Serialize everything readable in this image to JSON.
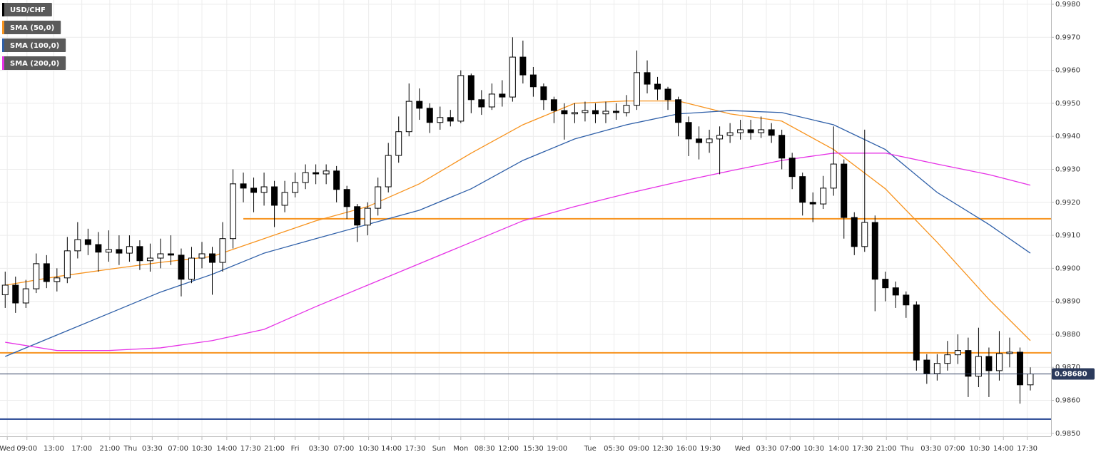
{
  "chart_data": {
    "type": "candlestick",
    "grid": true,
    "candles": {
      "name": "USD/CHF",
      "color": "#000000",
      "open": [
        0.9892,
        0.98949,
        0.98895,
        0.98938,
        0.99014,
        0.9896,
        0.98971,
        0.99053,
        0.99087,
        0.99072,
        0.99049,
        0.99057,
        0.99046,
        0.99066,
        0.99023,
        0.99031,
        0.99044,
        0.9904,
        0.98967,
        0.99031,
        0.99044,
        0.99018,
        0.9909,
        0.99256,
        0.99243,
        0.9923,
        0.99247,
        0.99191,
        0.9923,
        0.9926,
        0.9929,
        0.99286,
        0.99295,
        0.99239,
        0.99187,
        0.99131,
        0.99182,
        0.99247,
        0.99342,
        0.99414,
        0.99506,
        0.99485,
        0.99442,
        0.99457,
        0.99446,
        0.99584,
        0.99511,
        0.99489,
        0.99528,
        0.99519,
        0.9964,
        0.99586,
        0.9955,
        0.99511,
        0.99478,
        0.99468,
        0.99472,
        0.99478,
        0.99468,
        0.99476,
        0.99472,
        0.99494,
        0.99593,
        0.99558,
        0.99543,
        0.99511,
        0.99442,
        0.99392,
        0.99381,
        0.99392,
        0.99403,
        0.99411,
        0.9942,
        0.99411,
        0.9942,
        0.99403,
        0.99334,
        0.99278,
        0.992,
        0.99195,
        0.99243,
        0.99316,
        0.99154,
        0.99066,
        0.99139,
        0.98967,
        0.98941,
        0.98919,
        0.98889,
        0.98722,
        0.98681,
        0.98712,
        0.98738,
        0.98751,
        0.98673,
        0.98733,
        0.9869,
        0.98742,
        0.98746,
        0.98647
      ],
      "high": [
        0.9899,
        0.98975,
        0.98965,
        0.99045,
        0.9904,
        0.99,
        0.99095,
        0.9914,
        0.9912,
        0.9911,
        0.99115,
        0.991,
        0.991,
        0.99085,
        0.99075,
        0.9909,
        0.991,
        0.9906,
        0.99065,
        0.9908,
        0.99065,
        0.9914,
        0.993,
        0.9929,
        0.99275,
        0.9929,
        0.99265,
        0.99265,
        0.9929,
        0.99315,
        0.99315,
        0.99315,
        0.9931,
        0.9925,
        0.99195,
        0.992,
        0.99275,
        0.9938,
        0.9946,
        0.9956,
        0.99545,
        0.995,
        0.9949,
        0.9948,
        0.996,
        0.9959,
        0.9954,
        0.9956,
        0.9957,
        0.997,
        0.9969,
        0.9961,
        0.9956,
        0.9952,
        0.995,
        0.995,
        0.99505,
        0.995,
        0.99505,
        0.995,
        0.99525,
        0.9966,
        0.9963,
        0.9958,
        0.9955,
        0.9952,
        0.9946,
        0.9943,
        0.9942,
        0.9943,
        0.9944,
        0.9945,
        0.9945,
        0.9946,
        0.9944,
        0.9942,
        0.9935,
        0.9929,
        0.9923,
        0.9928,
        0.9943,
        0.9933,
        0.9917,
        0.9942,
        0.9916,
        0.9899,
        0.9896,
        0.9893,
        0.989,
        0.9874,
        0.9874,
        0.9878,
        0.988,
        0.9879,
        0.9882,
        0.9876,
        0.9881,
        0.9879,
        0.9876,
        0.987
      ],
      "low": [
        0.9888,
        0.98865,
        0.9888,
        0.98925,
        0.9894,
        0.9893,
        0.98955,
        0.9903,
        0.9904,
        0.9899,
        0.9902,
        0.9901,
        0.9902,
        0.98995,
        0.9899,
        0.99,
        0.9901,
        0.98915,
        0.98955,
        0.99,
        0.9892,
        0.9899,
        0.9906,
        0.992,
        0.9917,
        0.9919,
        0.99125,
        0.9917,
        0.99215,
        0.9924,
        0.99255,
        0.99255,
        0.992,
        0.9915,
        0.9908,
        0.991,
        0.9916,
        0.9923,
        0.9932,
        0.994,
        0.9945,
        0.9941,
        0.9942,
        0.9943,
        0.9944,
        0.9947,
        0.99465,
        0.9948,
        0.9949,
        0.99505,
        0.9956,
        0.9952,
        0.9948,
        0.9944,
        0.9939,
        0.9944,
        0.99445,
        0.9944,
        0.9944,
        0.9945,
        0.9946,
        0.9948,
        0.9953,
        0.9951,
        0.9948,
        0.994,
        0.9934,
        0.9933,
        0.9935,
        0.99285,
        0.9938,
        0.9939,
        0.9939,
        0.99395,
        0.9938,
        0.993,
        0.9924,
        0.9916,
        0.9914,
        0.9918,
        0.9922,
        0.9909,
        0.9904,
        0.9905,
        0.9887,
        0.989,
        0.9888,
        0.9885,
        0.9869,
        0.9865,
        0.9866,
        0.9869,
        0.9871,
        0.9861,
        0.9864,
        0.9861,
        0.9866,
        0.987,
        0.9859,
        0.9863
      ],
      "close": [
        0.98949,
        0.98895,
        0.98938,
        0.99014,
        0.9896,
        0.98971,
        0.99053,
        0.99087,
        0.99072,
        0.99049,
        0.99057,
        0.99046,
        0.99066,
        0.99023,
        0.99031,
        0.99044,
        0.9904,
        0.98967,
        0.99031,
        0.99044,
        0.99018,
        0.9909,
        0.99256,
        0.99243,
        0.9923,
        0.99247,
        0.99191,
        0.9923,
        0.9926,
        0.9929,
        0.99286,
        0.99295,
        0.99239,
        0.99187,
        0.99131,
        0.99182,
        0.99247,
        0.99342,
        0.99414,
        0.99506,
        0.99485,
        0.99442,
        0.99457,
        0.99446,
        0.99584,
        0.99511,
        0.99489,
        0.99528,
        0.99519,
        0.9964,
        0.99586,
        0.9955,
        0.99511,
        0.99478,
        0.99468,
        0.99472,
        0.99478,
        0.99468,
        0.99476,
        0.99472,
        0.99494,
        0.99593,
        0.99558,
        0.99543,
        0.99511,
        0.99442,
        0.99392,
        0.99381,
        0.99392,
        0.99403,
        0.99411,
        0.9942,
        0.99411,
        0.9942,
        0.99403,
        0.99334,
        0.99278,
        0.992,
        0.99195,
        0.99243,
        0.99316,
        0.99154,
        0.99066,
        0.99139,
        0.98967,
        0.98941,
        0.98919,
        0.98889,
        0.98722,
        0.98681,
        0.98712,
        0.98738,
        0.98751,
        0.98673,
        0.98733,
        0.9869,
        0.98742,
        0.98746,
        0.98647,
        0.9868
      ]
    },
    "series": [
      {
        "name": "SMA (50,0)",
        "color": "#f7931e",
        "x": [
          0,
          5,
          10,
          15,
          20,
          25,
          30,
          35,
          40,
          45,
          50,
          55,
          60,
          65,
          70,
          75,
          80,
          85,
          90,
          95,
          99
        ],
        "values": [
          0.98949,
          0.98975,
          0.98997,
          0.99018,
          0.99036,
          0.9909,
          0.99144,
          0.99187,
          0.99256,
          0.99349,
          0.99435,
          0.995,
          0.99507,
          0.99507,
          0.99468,
          0.99446,
          0.9936,
          0.99241,
          0.99079,
          0.98906,
          0.98781
        ]
      },
      {
        "name": "SMA (100,0)",
        "color": "#2e5fa8",
        "x": [
          0,
          5,
          10,
          15,
          20,
          25,
          30,
          35,
          40,
          45,
          50,
          55,
          60,
          65,
          70,
          75,
          80,
          85,
          90,
          95,
          99
        ],
        "values": [
          0.98733,
          0.98798,
          0.98863,
          0.98928,
          0.98982,
          0.99046,
          0.9909,
          0.99133,
          0.99176,
          0.99241,
          0.99327,
          0.99392,
          0.99435,
          0.99468,
          0.99478,
          0.99472,
          0.99435,
          0.9936,
          0.9923,
          0.99133,
          0.99046
        ]
      },
      {
        "name": "SMA (200,0)",
        "color": "#e632e6",
        "x": [
          0,
          5,
          10,
          15,
          20,
          25,
          30,
          35,
          40,
          45,
          50,
          55,
          60,
          65,
          70,
          75,
          80,
          85,
          90,
          95,
          99
        ],
        "values": [
          0.98776,
          0.98751,
          0.98751,
          0.98759,
          0.98781,
          0.98815,
          0.98884,
          0.98949,
          0.99014,
          0.99079,
          0.99144,
          0.99187,
          0.99226,
          0.99262,
          0.99295,
          0.99327,
          0.99349,
          0.99349,
          0.99316,
          0.99284,
          0.99252
        ]
      }
    ],
    "hlines": [
      {
        "value": 0.9915,
        "color": "#f7931e",
        "from": 23
      },
      {
        "value": 0.98744,
        "color": "#f7931e"
      },
      {
        "value": 0.98543,
        "color": "#1f3f8f"
      }
    ],
    "last_price": {
      "value": 0.9868,
      "label": "0.98680",
      "color": "#2b3a5c"
    },
    "xlim": [
      -0.5,
      101
    ],
    "ylim": [
      0.98491,
      0.99813
    ],
    "yticks": [
      {
        "value": 0.985,
        "label": "0.9850"
      },
      {
        "value": 0.986,
        "label": "0.9860"
      },
      {
        "value": 0.987,
        "label": "0.9870"
      },
      {
        "value": 0.988,
        "label": "0.9880"
      },
      {
        "value": 0.989,
        "label": "0.9890"
      },
      {
        "value": 0.99,
        "label": "0.9900"
      },
      {
        "value": 0.991,
        "label": "0.9910"
      },
      {
        "value": 0.992,
        "label": "0.9920"
      },
      {
        "value": 0.993,
        "label": "0.9930"
      },
      {
        "value": 0.994,
        "label": "0.9940"
      },
      {
        "value": 0.995,
        "label": "0.9950"
      },
      {
        "value": 0.996,
        "label": "0.9960"
      },
      {
        "value": 0.997,
        "label": "0.9970"
      },
      {
        "value": 0.998,
        "label": "0.9980"
      }
    ],
    "xticks": [
      {
        "value": 0.2,
        "label": "Wed"
      },
      {
        "value": 2.1,
        "label": "09:00"
      },
      {
        "value": 4.7,
        "label": "13:00"
      },
      {
        "value": 7.4,
        "label": "17:00"
      },
      {
        "value": 10.1,
        "label": "21:00"
      },
      {
        "value": 12.1,
        "label": "Thu"
      },
      {
        "value": 14.2,
        "label": "03:30"
      },
      {
        "value": 16.7,
        "label": "07:00"
      },
      {
        "value": 19.0,
        "label": "10:30"
      },
      {
        "value": 21.4,
        "label": "14:00"
      },
      {
        "value": 23.7,
        "label": "17:30"
      },
      {
        "value": 26.0,
        "label": "21:00"
      },
      {
        "value": 28.0,
        "label": "Fri"
      },
      {
        "value": 30.3,
        "label": "03:30"
      },
      {
        "value": 32.7,
        "label": "07:00"
      },
      {
        "value": 35.1,
        "label": "10:30"
      },
      {
        "value": 37.3,
        "label": "14:00"
      },
      {
        "value": 39.6,
        "label": "17:30"
      },
      {
        "value": 41.9,
        "label": "Sun"
      },
      {
        "value": 44.0,
        "label": "Mon"
      },
      {
        "value": 46.3,
        "label": "08:30"
      },
      {
        "value": 48.6,
        "label": "12:00"
      },
      {
        "value": 51.0,
        "label": "15:30"
      },
      {
        "value": 53.3,
        "label": "19:00"
      },
      {
        "value": 56.5,
        "label": "Tue"
      },
      {
        "value": 58.8,
        "label": "05:30"
      },
      {
        "value": 61.2,
        "label": "09:00"
      },
      {
        "value": 63.5,
        "label": "12:30"
      },
      {
        "value": 65.8,
        "label": "16:00"
      },
      {
        "value": 68.1,
        "label": "19:30"
      },
      {
        "value": 71.2,
        "label": "Wed"
      },
      {
        "value": 73.5,
        "label": "03:30"
      },
      {
        "value": 75.8,
        "label": "07:00"
      },
      {
        "value": 78.1,
        "label": "10:30"
      },
      {
        "value": 80.5,
        "label": "14:00"
      },
      {
        "value": 82.8,
        "label": "17:30"
      },
      {
        "value": 85.1,
        "label": "21:00"
      },
      {
        "value": 87.1,
        "label": "Thu"
      },
      {
        "value": 89.4,
        "label": "03:30"
      },
      {
        "value": 91.7,
        "label": "07:00"
      },
      {
        "value": 94.1,
        "label": "10:30"
      },
      {
        "value": 96.4,
        "label": "14:00"
      },
      {
        "value": 98.7,
        "label": "17:30"
      }
    ]
  }
}
